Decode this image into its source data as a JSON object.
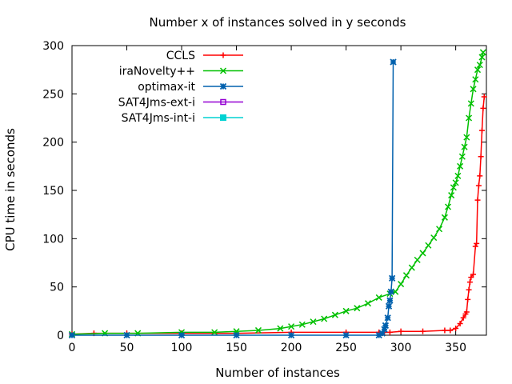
{
  "chart_data": {
    "type": "line",
    "title": "Number x of instances solved in y seconds",
    "xlabel": "Number of instances",
    "ylabel": "CPU time in seconds",
    "xlim": [
      0,
      378
    ],
    "ylim": [
      0,
      300
    ],
    "xticks": [
      0,
      50,
      100,
      150,
      200,
      250,
      300,
      350
    ],
    "yticks": [
      0,
      50,
      100,
      150,
      200,
      250,
      300
    ],
    "grid": false,
    "legend_position": "top-right",
    "series": [
      {
        "name": "CCLS",
        "color": "#ff0000",
        "marker": "plus",
        "points": [
          [
            0,
            1
          ],
          [
            20,
            2
          ],
          [
            50,
            2
          ],
          [
            100,
            2
          ],
          [
            150,
            2
          ],
          [
            200,
            3
          ],
          [
            250,
            3
          ],
          [
            280,
            3
          ],
          [
            285,
            3
          ],
          [
            290,
            3
          ],
          [
            300,
            4
          ],
          [
            320,
            4
          ],
          [
            340,
            5
          ],
          [
            345,
            5
          ],
          [
            350,
            7
          ],
          [
            354,
            12
          ],
          [
            357,
            18
          ],
          [
            359,
            22
          ],
          [
            360,
            24
          ],
          [
            361,
            37
          ],
          [
            362,
            47
          ],
          [
            363,
            55
          ],
          [
            364,
            60
          ],
          [
            366,
            63
          ],
          [
            368,
            92
          ],
          [
            369,
            95
          ],
          [
            370,
            140
          ],
          [
            371,
            155
          ],
          [
            372,
            165
          ],
          [
            373,
            185
          ],
          [
            374,
            212
          ],
          [
            375,
            235
          ],
          [
            376,
            247
          ]
        ]
      },
      {
        "name": "iraNovelty++",
        "color": "#00c000",
        "marker": "x",
        "points": [
          [
            0,
            1
          ],
          [
            30,
            2
          ],
          [
            60,
            2
          ],
          [
            100,
            3
          ],
          [
            130,
            3
          ],
          [
            150,
            4
          ],
          [
            170,
            5
          ],
          [
            190,
            7
          ],
          [
            200,
            9
          ],
          [
            210,
            11
          ],
          [
            220,
            14
          ],
          [
            230,
            17
          ],
          [
            240,
            21
          ],
          [
            250,
            25
          ],
          [
            260,
            28
          ],
          [
            270,
            33
          ],
          [
            280,
            39
          ],
          [
            290,
            43
          ],
          [
            295,
            45
          ],
          [
            300,
            53
          ],
          [
            305,
            62
          ],
          [
            310,
            70
          ],
          [
            315,
            78
          ],
          [
            320,
            85
          ],
          [
            325,
            93
          ],
          [
            330,
            101
          ],
          [
            335,
            110
          ],
          [
            340,
            122
          ],
          [
            343,
            133
          ],
          [
            346,
            145
          ],
          [
            348,
            153
          ],
          [
            350,
            158
          ],
          [
            352,
            165
          ],
          [
            354,
            175
          ],
          [
            356,
            185
          ],
          [
            358,
            195
          ],
          [
            360,
            205
          ],
          [
            362,
            225
          ],
          [
            364,
            240
          ],
          [
            366,
            255
          ],
          [
            368,
            265
          ],
          [
            370,
            275
          ],
          [
            372,
            280
          ],
          [
            374,
            288
          ],
          [
            375,
            293
          ]
        ]
      },
      {
        "name": "optimax-it",
        "color": "#0060ad",
        "marker": "star",
        "points": [
          [
            0,
            0
          ],
          [
            50,
            0
          ],
          [
            100,
            0
          ],
          [
            150,
            0
          ],
          [
            200,
            0
          ],
          [
            250,
            0
          ],
          [
            280,
            0
          ],
          [
            283,
            2
          ],
          [
            285,
            6
          ],
          [
            286,
            10
          ],
          [
            288,
            18
          ],
          [
            289,
            30
          ],
          [
            290,
            36
          ],
          [
            291,
            45
          ],
          [
            292,
            59
          ],
          [
            293,
            283
          ]
        ]
      },
      {
        "name": "SAT4Jms-ext-i",
        "color": "#9400d3",
        "marker": "box",
        "points": []
      },
      {
        "name": "SAT4Jms-int-i",
        "color": "#00d2d2",
        "marker": "filled-box",
        "points": []
      }
    ]
  }
}
